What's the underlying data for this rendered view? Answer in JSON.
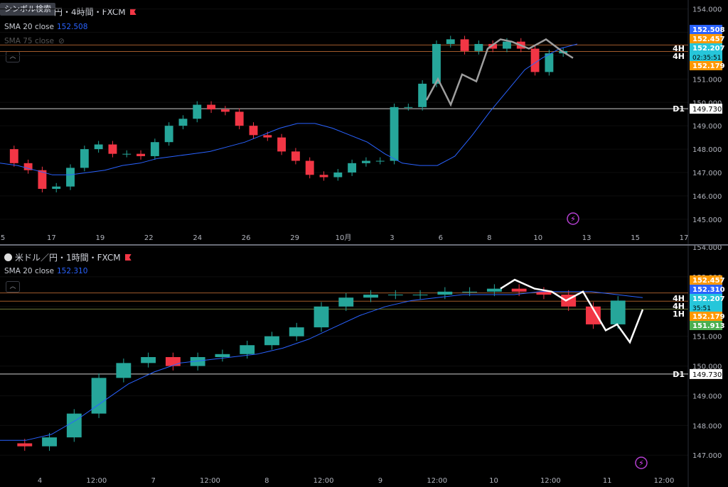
{
  "search_label": "シンボル検索",
  "colors": {
    "up": "#26a69a",
    "down": "#f23645",
    "sma": "#2962ff",
    "grid": "#0e0e0e"
  },
  "top": {
    "title": "円・4時間・FXCM",
    "indicators": [
      {
        "label": "SMA 20 close",
        "value": "152.508"
      },
      {
        "label": "SMA 75 close",
        "value": ""
      }
    ],
    "price_axis": [
      "154.000",
      "153.000",
      "152.000",
      "151.000",
      "150.000",
      "149.000",
      "148.000",
      "147.000",
      "146.000",
      "145.000"
    ],
    "time_axis": [
      "5",
      "17",
      "19",
      "22",
      "24",
      "26",
      "29",
      "10月",
      "3",
      "6",
      "8",
      "10",
      "13",
      "15",
      "17"
    ],
    "price_labels": [
      {
        "text": "152.508",
        "color": "#2962ff"
      },
      {
        "text": "152.457",
        "color": "#ff9800"
      },
      {
        "text": "152.207",
        "color": "#26c6da"
      },
      {
        "text": "02:35:51",
        "color": "#26c6da"
      },
      {
        "text": "152.179",
        "color": "#ff9800"
      },
      {
        "text": "149.730",
        "color": "#ffffff"
      }
    ],
    "tags": [
      "4H",
      "4H",
      "D1"
    ]
  },
  "bottom": {
    "title": "米ドル／円・1時間・FXCM",
    "indicators": [
      {
        "label": "SMA 20 close",
        "value": "152.310"
      }
    ],
    "price_axis": [
      "154.000",
      "153.000",
      "152.000",
      "151.000",
      "150.000",
      "149.000",
      "148.000",
      "147.000"
    ],
    "time_axis": [
      "4",
      "12:00",
      "7",
      "12:00",
      "8",
      "12:00",
      "9",
      "12:00",
      "10",
      "12:00",
      "11",
      "12:00"
    ],
    "price_labels": [
      {
        "text": "152.457",
        "color": "#ff9800"
      },
      {
        "text": "152.310",
        "color": "#2962ff"
      },
      {
        "text": "152.207",
        "color": "#26c6da"
      },
      {
        "text": "35:51",
        "color": "#26c6da"
      },
      {
        "text": "152.179",
        "color": "#ff9800"
      },
      {
        "text": "151.913",
        "color": "#4caf50"
      },
      {
        "text": "149.730",
        "color": "#ffffff"
      }
    ],
    "tags": [
      "4H",
      "4H",
      "1H",
      "D1"
    ]
  },
  "chart_data": [
    {
      "type": "candlestick",
      "title": "円・4時間・FXCM",
      "ylim": [
        144.6,
        154.2
      ],
      "sma20": [
        147.4,
        147.3,
        147.1,
        146.9,
        146.9,
        147.0,
        147.1,
        147.3,
        147.4,
        147.6,
        147.7,
        147.8,
        147.9,
        148.1,
        148.3,
        148.6,
        148.9,
        149.1,
        149.1,
        148.9,
        148.6,
        148.3,
        147.8,
        147.4,
        147.3,
        147.3,
        147.7,
        148.6,
        149.6,
        150.5,
        151.4,
        151.9,
        152.3,
        152.5
      ],
      "series": [
        148.0,
        147.4,
        147.1,
        146.3,
        146.4,
        147.2,
        148.0,
        148.2,
        147.8,
        147.8,
        147.7,
        148.3,
        149.0,
        149.3,
        149.9,
        149.7,
        149.6,
        149.0,
        148.6,
        148.5,
        147.9,
        147.5,
        146.9,
        146.8,
        147.0,
        147.4,
        147.5,
        147.5,
        149.8,
        149.8,
        150.8,
        152.5,
        152.7,
        152.2,
        152.5,
        152.3,
        152.6,
        152.3,
        151.3,
        152.1,
        152.2
      ],
      "x_labels": [
        "5",
        "17",
        "19",
        "22",
        "24",
        "26",
        "29",
        "10月",
        "3",
        "6",
        "8",
        "10",
        "13",
        "15",
        "17"
      ],
      "hlines": [
        152.457,
        152.179,
        149.73
      ]
    },
    {
      "type": "candlestick",
      "title": "米ドル／円・1時間・FXCM",
      "ylim": [
        146.6,
        154.0
      ],
      "sma20": [
        147.5,
        147.5,
        147.7,
        148.2,
        148.8,
        149.4,
        149.8,
        150.1,
        150.2,
        150.3,
        150.4,
        150.6,
        150.9,
        151.3,
        151.7,
        152.0,
        152.2,
        152.3,
        152.4,
        152.4,
        152.4,
        152.5,
        152.5,
        152.5,
        152.4,
        152.3
      ],
      "series": [
        147.4,
        147.3,
        147.6,
        148.4,
        149.6,
        150.1,
        150.3,
        150.0,
        150.3,
        150.4,
        150.7,
        151.0,
        151.3,
        152.0,
        152.3,
        152.4,
        152.4,
        152.4,
        152.5,
        152.5,
        152.6,
        152.5,
        152.4,
        152.0,
        151.4,
        152.2
      ],
      "x_labels": [
        "4",
        "12:00",
        "7",
        "12:00",
        "8",
        "12:00",
        "9",
        "12:00",
        "10",
        "12:00",
        "11",
        "12:00"
      ],
      "hlines": [
        152.457,
        152.179,
        151.913,
        149.73
      ]
    }
  ]
}
